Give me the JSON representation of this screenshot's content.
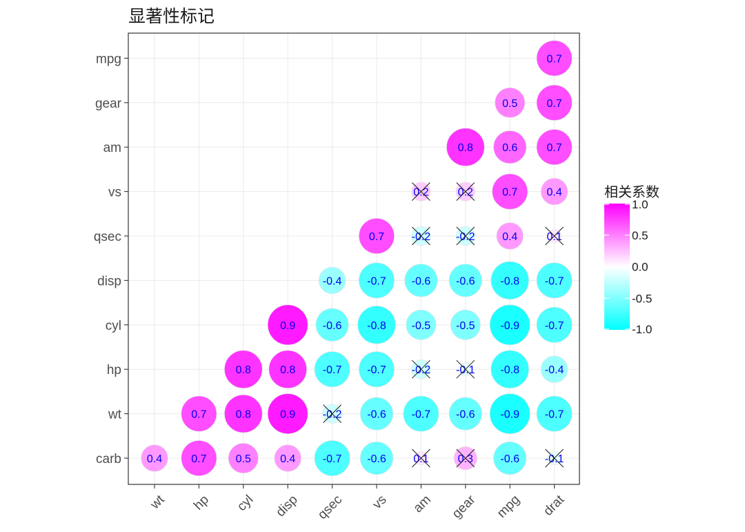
{
  "title": "显著性标记",
  "chart_data": {
    "type": "heatmap",
    "title": "显著性标记",
    "x_labels": [
      "wt",
      "hp",
      "cyl",
      "disp",
      "qsec",
      "vs",
      "am",
      "gear",
      "mpg",
      "drat"
    ],
    "y_labels": [
      "carb",
      "wt",
      "hp",
      "cyl",
      "disp",
      "qsec",
      "vs",
      "am",
      "gear",
      "mpg"
    ],
    "legend": {
      "title": "相关系数",
      "ticks": [
        "1.0",
        "0.5",
        "0.0",
        "-0.5",
        "-1.0"
      ],
      "range": [
        -1,
        1
      ],
      "colors": {
        "low": "#00ffff",
        "mid": "#ffffff",
        "high": "#ff00ff"
      },
      "placement": "right"
    },
    "grid": true,
    "cells": [
      {
        "y": "mpg",
        "x": "drat",
        "value": 0.7,
        "significant": true
      },
      {
        "y": "gear",
        "x": "mpg",
        "value": 0.5,
        "significant": true
      },
      {
        "y": "gear",
        "x": "drat",
        "value": 0.7,
        "significant": true
      },
      {
        "y": "am",
        "x": "gear",
        "value": 0.8,
        "significant": true
      },
      {
        "y": "am",
        "x": "mpg",
        "value": 0.6,
        "significant": true
      },
      {
        "y": "am",
        "x": "drat",
        "value": 0.7,
        "significant": true
      },
      {
        "y": "vs",
        "x": "am",
        "value": 0.2,
        "significant": false
      },
      {
        "y": "vs",
        "x": "gear",
        "value": 0.2,
        "significant": false
      },
      {
        "y": "vs",
        "x": "mpg",
        "value": 0.7,
        "significant": true
      },
      {
        "y": "vs",
        "x": "drat",
        "value": 0.4,
        "significant": true
      },
      {
        "y": "qsec",
        "x": "vs",
        "value": 0.7,
        "significant": true
      },
      {
        "y": "qsec",
        "x": "am",
        "value": -0.2,
        "significant": false
      },
      {
        "y": "qsec",
        "x": "gear",
        "value": -0.2,
        "significant": false
      },
      {
        "y": "qsec",
        "x": "mpg",
        "value": 0.4,
        "significant": true
      },
      {
        "y": "qsec",
        "x": "drat",
        "value": 0.1,
        "significant": false
      },
      {
        "y": "disp",
        "x": "qsec",
        "value": -0.4,
        "significant": true
      },
      {
        "y": "disp",
        "x": "vs",
        "value": -0.7,
        "significant": true
      },
      {
        "y": "disp",
        "x": "am",
        "value": -0.6,
        "significant": true
      },
      {
        "y": "disp",
        "x": "gear",
        "value": -0.6,
        "significant": true
      },
      {
        "y": "disp",
        "x": "mpg",
        "value": -0.8,
        "significant": true
      },
      {
        "y": "disp",
        "x": "drat",
        "value": -0.7,
        "significant": true
      },
      {
        "y": "cyl",
        "x": "disp",
        "value": 0.9,
        "significant": true
      },
      {
        "y": "cyl",
        "x": "qsec",
        "value": -0.6,
        "significant": true
      },
      {
        "y": "cyl",
        "x": "vs",
        "value": -0.8,
        "significant": true
      },
      {
        "y": "cyl",
        "x": "am",
        "value": -0.5,
        "significant": true
      },
      {
        "y": "cyl",
        "x": "gear",
        "value": -0.5,
        "significant": true
      },
      {
        "y": "cyl",
        "x": "mpg",
        "value": -0.9,
        "significant": true
      },
      {
        "y": "cyl",
        "x": "drat",
        "value": -0.7,
        "significant": true
      },
      {
        "y": "hp",
        "x": "cyl",
        "value": 0.8,
        "significant": true
      },
      {
        "y": "hp",
        "x": "disp",
        "value": 0.8,
        "significant": true
      },
      {
        "y": "hp",
        "x": "qsec",
        "value": -0.7,
        "significant": true
      },
      {
        "y": "hp",
        "x": "vs",
        "value": -0.7,
        "significant": true
      },
      {
        "y": "hp",
        "x": "am",
        "value": -0.2,
        "significant": false
      },
      {
        "y": "hp",
        "x": "gear",
        "value": -0.1,
        "significant": false
      },
      {
        "y": "hp",
        "x": "mpg",
        "value": -0.8,
        "significant": true
      },
      {
        "y": "hp",
        "x": "drat",
        "value": -0.4,
        "significant": true
      },
      {
        "y": "wt",
        "x": "hp",
        "value": 0.7,
        "significant": true
      },
      {
        "y": "wt",
        "x": "cyl",
        "value": 0.8,
        "significant": true
      },
      {
        "y": "wt",
        "x": "disp",
        "value": 0.9,
        "significant": true
      },
      {
        "y": "wt",
        "x": "qsec",
        "value": -0.2,
        "significant": false
      },
      {
        "y": "wt",
        "x": "vs",
        "value": -0.6,
        "significant": true
      },
      {
        "y": "wt",
        "x": "am",
        "value": -0.7,
        "significant": true
      },
      {
        "y": "wt",
        "x": "gear",
        "value": -0.6,
        "significant": true
      },
      {
        "y": "wt",
        "x": "mpg",
        "value": -0.9,
        "significant": true
      },
      {
        "y": "wt",
        "x": "drat",
        "value": -0.7,
        "significant": true
      },
      {
        "y": "carb",
        "x": "wt",
        "value": 0.4,
        "significant": true
      },
      {
        "y": "carb",
        "x": "hp",
        "value": 0.7,
        "significant": true
      },
      {
        "y": "carb",
        "x": "cyl",
        "value": 0.5,
        "significant": true
      },
      {
        "y": "carb",
        "x": "disp",
        "value": 0.4,
        "significant": true
      },
      {
        "y": "carb",
        "x": "qsec",
        "value": -0.7,
        "significant": true
      },
      {
        "y": "carb",
        "x": "vs",
        "value": -0.6,
        "significant": true
      },
      {
        "y": "carb",
        "x": "am",
        "value": 0.1,
        "significant": false
      },
      {
        "y": "carb",
        "x": "gear",
        "value": 0.3,
        "significant": false
      },
      {
        "y": "carb",
        "x": "mpg",
        "value": -0.6,
        "significant": true
      },
      {
        "y": "carb",
        "x": "drat",
        "value": -0.1,
        "significant": false
      }
    ]
  }
}
